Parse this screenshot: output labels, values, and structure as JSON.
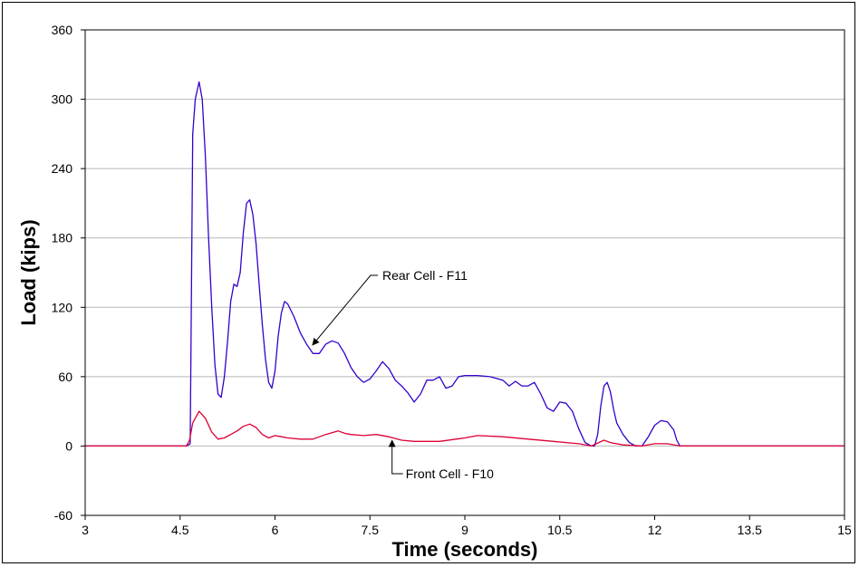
{
  "chart_data": {
    "type": "line",
    "xlabel": "Time (seconds)",
    "ylabel": "Load (kips)",
    "xlim": [
      3,
      15
    ],
    "ylim": [
      -60,
      360
    ],
    "xticks": [
      3,
      4.5,
      6,
      7.5,
      9,
      10.5,
      12,
      13.5,
      15
    ],
    "yticks": [
      -60,
      0,
      60,
      120,
      180,
      240,
      300,
      360
    ],
    "xtick_labels": [
      "3",
      "4.5",
      "6",
      "7.5",
      "9",
      "10.5",
      "12",
      "13.5",
      "15"
    ],
    "ytick_labels": [
      "-60",
      "0",
      "60",
      "120",
      "180",
      "240",
      "300",
      "360"
    ],
    "grid": "horizontal",
    "legend": "none",
    "series": [
      {
        "name": "Rear Cell - F11",
        "color": "#3300cc",
        "points": [
          [
            3,
            0
          ],
          [
            4.6,
            0
          ],
          [
            4.66,
            2
          ],
          [
            4.7,
            270
          ],
          [
            4.74,
            300
          ],
          [
            4.8,
            315
          ],
          [
            4.85,
            300
          ],
          [
            4.9,
            250
          ],
          [
            4.95,
            180
          ],
          [
            5.0,
            120
          ],
          [
            5.05,
            70
          ],
          [
            5.1,
            45
          ],
          [
            5.15,
            42
          ],
          [
            5.2,
            60
          ],
          [
            5.25,
            90
          ],
          [
            5.3,
            125
          ],
          [
            5.35,
            140
          ],
          [
            5.4,
            138
          ],
          [
            5.45,
            150
          ],
          [
            5.5,
            185
          ],
          [
            5.55,
            210
          ],
          [
            5.6,
            213
          ],
          [
            5.65,
            200
          ],
          [
            5.7,
            175
          ],
          [
            5.75,
            140
          ],
          [
            5.8,
            105
          ],
          [
            5.85,
            75
          ],
          [
            5.9,
            55
          ],
          [
            5.95,
            50
          ],
          [
            6.0,
            65
          ],
          [
            6.05,
            95
          ],
          [
            6.1,
            115
          ],
          [
            6.15,
            125
          ],
          [
            6.2,
            123
          ],
          [
            6.3,
            112
          ],
          [
            6.4,
            98
          ],
          [
            6.5,
            88
          ],
          [
            6.6,
            80
          ],
          [
            6.7,
            80
          ],
          [
            6.8,
            88
          ],
          [
            6.9,
            91
          ],
          [
            7.0,
            89
          ],
          [
            7.1,
            80
          ],
          [
            7.2,
            68
          ],
          [
            7.3,
            60
          ],
          [
            7.4,
            55
          ],
          [
            7.5,
            58
          ],
          [
            7.6,
            65
          ],
          [
            7.7,
            73
          ],
          [
            7.8,
            67
          ],
          [
            7.9,
            57
          ],
          [
            8.0,
            52
          ],
          [
            8.1,
            46
          ],
          [
            8.2,
            38
          ],
          [
            8.3,
            45
          ],
          [
            8.4,
            57
          ],
          [
            8.5,
            57
          ],
          [
            8.6,
            60
          ],
          [
            8.7,
            50
          ],
          [
            8.8,
            52
          ],
          [
            8.9,
            60
          ],
          [
            9.0,
            61
          ],
          [
            9.2,
            61
          ],
          [
            9.4,
            60
          ],
          [
            9.6,
            57
          ],
          [
            9.7,
            52
          ],
          [
            9.8,
            56
          ],
          [
            9.9,
            52
          ],
          [
            10.0,
            52
          ],
          [
            10.1,
            55
          ],
          [
            10.2,
            45
          ],
          [
            10.3,
            33
          ],
          [
            10.4,
            30
          ],
          [
            10.5,
            38
          ],
          [
            10.6,
            37
          ],
          [
            10.7,
            30
          ],
          [
            10.8,
            15
          ],
          [
            10.9,
            3
          ],
          [
            11.0,
            0
          ],
          [
            11.05,
            0
          ],
          [
            11.1,
            10
          ],
          [
            11.15,
            35
          ],
          [
            11.2,
            52
          ],
          [
            11.25,
            55
          ],
          [
            11.3,
            47
          ],
          [
            11.35,
            32
          ],
          [
            11.4,
            20
          ],
          [
            11.5,
            10
          ],
          [
            11.6,
            3
          ],
          [
            11.7,
            0
          ],
          [
            11.8,
            0
          ],
          [
            11.9,
            8
          ],
          [
            12.0,
            18
          ],
          [
            12.1,
            22
          ],
          [
            12.2,
            21
          ],
          [
            12.3,
            14
          ],
          [
            12.35,
            5
          ],
          [
            12.4,
            0
          ],
          [
            13.0,
            0
          ],
          [
            15,
            0
          ]
        ]
      },
      {
        "name": "Front Cell - F10",
        "color": "#dd0033",
        "points": [
          [
            3,
            0
          ],
          [
            4.6,
            0
          ],
          [
            4.65,
            5
          ],
          [
            4.7,
            20
          ],
          [
            4.8,
            30
          ],
          [
            4.9,
            24
          ],
          [
            5.0,
            12
          ],
          [
            5.1,
            6
          ],
          [
            5.2,
            7
          ],
          [
            5.3,
            10
          ],
          [
            5.4,
            13
          ],
          [
            5.5,
            17
          ],
          [
            5.6,
            19
          ],
          [
            5.7,
            16
          ],
          [
            5.8,
            10
          ],
          [
            5.9,
            7
          ],
          [
            6.0,
            9
          ],
          [
            6.1,
            8
          ],
          [
            6.2,
            7
          ],
          [
            6.4,
            6
          ],
          [
            6.6,
            6
          ],
          [
            6.8,
            10
          ],
          [
            7.0,
            13
          ],
          [
            7.1,
            11
          ],
          [
            7.2,
            10
          ],
          [
            7.4,
            9
          ],
          [
            7.6,
            10
          ],
          [
            7.8,
            8
          ],
          [
            8.0,
            5
          ],
          [
            8.2,
            4
          ],
          [
            8.6,
            4
          ],
          [
            9.0,
            7
          ],
          [
            9.2,
            9
          ],
          [
            9.6,
            8
          ],
          [
            10.0,
            6
          ],
          [
            10.4,
            4
          ],
          [
            10.8,
            2
          ],
          [
            11.0,
            0
          ],
          [
            11.2,
            5
          ],
          [
            11.3,
            3
          ],
          [
            11.5,
            1
          ],
          [
            11.8,
            0
          ],
          [
            12.0,
            2
          ],
          [
            12.2,
            2
          ],
          [
            12.4,
            0
          ],
          [
            15,
            0
          ]
        ]
      }
    ],
    "annotations": [
      {
        "text": "Rear Cell - F11",
        "series": "Rear Cell - F11",
        "x": 6.55,
        "y": 85
      },
      {
        "text": "Front Cell - F10",
        "series": "Front Cell - F10",
        "x": 7.85,
        "y": 8
      }
    ]
  }
}
